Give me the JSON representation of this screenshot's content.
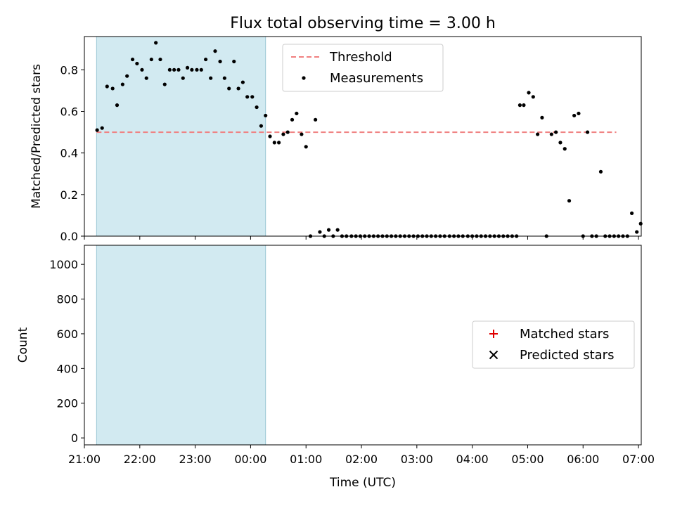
{
  "chart_data": [
    {
      "type": "scatter",
      "title": "Flux total observing time = 3.00 h",
      "xlabel": "",
      "ylabel": "Matched/Predicted stars",
      "xlim": [
        21.0,
        31.05
      ],
      "ylim": [
        0,
        0.96
      ],
      "yticks": [
        0.0,
        0.2,
        0.4,
        0.6,
        0.8
      ],
      "ytick_labels": [
        "0.0",
        "0.2",
        "0.4",
        "0.6",
        "0.8"
      ],
      "shaded_interval": {
        "x": [
          21.22,
          24.27
        ],
        "color": "#add8e6"
      },
      "grid": false,
      "legend_position": "upper-center",
      "series": [
        {
          "name": "Threshold",
          "style": "dashed-line",
          "color": "#f08080",
          "x": [
            21.22,
            30.6
          ],
          "y": [
            0.5,
            0.5
          ]
        },
        {
          "name": "Measurements",
          "style": "dot",
          "color": "#000000",
          "points": [
            [
              21.23,
              0.51
            ],
            [
              21.32,
              0.52
            ],
            [
              21.41,
              0.72
            ],
            [
              21.51,
              0.71
            ],
            [
              21.59,
              0.63
            ],
            [
              21.69,
              0.73
            ],
            [
              21.77,
              0.77
            ],
            [
              21.87,
              0.85
            ],
            [
              21.95,
              0.83
            ],
            [
              22.04,
              0.8
            ],
            [
              22.12,
              0.76
            ],
            [
              22.21,
              0.85
            ],
            [
              22.29,
              0.93
            ],
            [
              22.37,
              0.85
            ],
            [
              22.45,
              0.73
            ],
            [
              22.54,
              0.8
            ],
            [
              22.62,
              0.8
            ],
            [
              22.7,
              0.8
            ],
            [
              22.78,
              0.76
            ],
            [
              22.86,
              0.81
            ],
            [
              22.94,
              0.8
            ],
            [
              23.03,
              0.8
            ],
            [
              23.11,
              0.8
            ],
            [
              23.19,
              0.85
            ],
            [
              23.28,
              0.76
            ],
            [
              23.36,
              0.89
            ],
            [
              23.45,
              0.84
            ],
            [
              23.53,
              0.76
            ],
            [
              23.61,
              0.71
            ],
            [
              23.7,
              0.84
            ],
            [
              23.78,
              0.71
            ],
            [
              23.86,
              0.74
            ],
            [
              23.94,
              0.67
            ],
            [
              24.03,
              0.67
            ],
            [
              24.11,
              0.62
            ],
            [
              24.19,
              0.53
            ],
            [
              24.27,
              0.58
            ],
            [
              24.35,
              0.48
            ],
            [
              24.43,
              0.45
            ],
            [
              24.51,
              0.45
            ],
            [
              24.59,
              0.49
            ],
            [
              24.67,
              0.5
            ],
            [
              24.75,
              0.56
            ],
            [
              24.83,
              0.59
            ],
            [
              24.92,
              0.49
            ],
            [
              25.0,
              0.43
            ],
            [
              25.08,
              0.0
            ],
            [
              25.17,
              0.56
            ],
            [
              25.25,
              0.02
            ],
            [
              25.33,
              0.0
            ],
            [
              25.41,
              0.03
            ],
            [
              25.49,
              0.0
            ],
            [
              25.57,
              0.03
            ],
            [
              25.65,
              0.0
            ],
            [
              25.73,
              0.0
            ],
            [
              25.82,
              0.0
            ],
            [
              25.9,
              0.0
            ],
            [
              25.98,
              0.0
            ],
            [
              26.06,
              0.0
            ],
            [
              26.14,
              0.0
            ],
            [
              26.22,
              0.0
            ],
            [
              26.3,
              0.0
            ],
            [
              26.38,
              0.0
            ],
            [
              26.46,
              0.0
            ],
            [
              26.54,
              0.0
            ],
            [
              26.62,
              0.0
            ],
            [
              26.7,
              0.0
            ],
            [
              26.78,
              0.0
            ],
            [
              26.86,
              0.0
            ],
            [
              26.94,
              0.0
            ],
            [
              27.02,
              0.0
            ],
            [
              27.1,
              0.0
            ],
            [
              27.18,
              0.0
            ],
            [
              27.26,
              0.0
            ],
            [
              27.34,
              0.0
            ],
            [
              27.42,
              0.0
            ],
            [
              27.5,
              0.0
            ],
            [
              27.59,
              0.0
            ],
            [
              27.67,
              0.0
            ],
            [
              27.75,
              0.0
            ],
            [
              27.83,
              0.0
            ],
            [
              27.92,
              0.0
            ],
            [
              28.0,
              0.0
            ],
            [
              28.08,
              0.0
            ],
            [
              28.16,
              0.0
            ],
            [
              28.24,
              0.0
            ],
            [
              28.32,
              0.0
            ],
            [
              28.4,
              0.0
            ],
            [
              28.48,
              0.0
            ],
            [
              28.56,
              0.0
            ],
            [
              28.64,
              0.0
            ],
            [
              28.72,
              0.0
            ],
            [
              28.8,
              0.0
            ],
            [
              28.86,
              0.63
            ],
            [
              28.93,
              0.63
            ],
            [
              29.02,
              0.69
            ],
            [
              29.1,
              0.67
            ],
            [
              29.18,
              0.49
            ],
            [
              29.26,
              0.57
            ],
            [
              29.34,
              0.0
            ],
            [
              29.43,
              0.49
            ],
            [
              29.51,
              0.5
            ],
            [
              29.59,
              0.45
            ],
            [
              29.67,
              0.42
            ],
            [
              29.75,
              0.17
            ],
            [
              29.84,
              0.58
            ],
            [
              29.92,
              0.59
            ],
            [
              30.0,
              0.0
            ],
            [
              30.08,
              0.5
            ],
            [
              30.16,
              0.0
            ],
            [
              30.24,
              0.0
            ],
            [
              30.32,
              0.31
            ],
            [
              30.4,
              0.0
            ],
            [
              30.48,
              0.0
            ],
            [
              30.56,
              0.0
            ],
            [
              30.64,
              0.0
            ],
            [
              30.72,
              0.0
            ],
            [
              30.8,
              0.0
            ],
            [
              30.88,
              0.11
            ],
            [
              30.97,
              0.02
            ],
            [
              31.04,
              0.06
            ]
          ],
          "points_note": ""
        }
      ]
    },
    {
      "type": "scatter",
      "title": "",
      "xlabel": "Time (UTC)",
      "ylabel": "Count",
      "xlim": [
        21.0,
        31.05
      ],
      "ylim": [
        -40,
        1110
      ],
      "yticks": [
        0,
        200,
        400,
        600,
        800,
        1000
      ],
      "ytick_labels": [
        "0",
        "200",
        "400",
        "600",
        "800",
        "1000"
      ],
      "xticks": [
        21,
        22,
        23,
        24,
        25,
        26,
        27,
        28,
        29,
        30,
        31
      ],
      "xtick_labels": [
        "21:00",
        "22:00",
        "23:00",
        "00:00",
        "01:00",
        "02:00",
        "03:00",
        "04:00",
        "05:00",
        "06:00",
        "07:00"
      ],
      "shaded_interval": {
        "x": [
          21.22,
          24.27
        ],
        "color": "#add8e6"
      },
      "grid": false,
      "legend_position": "center-right",
      "series": [
        {
          "name": "Matched stars",
          "marker": "plus",
          "color": "#e00000"
        },
        {
          "name": "Predicted stars",
          "marker": "x",
          "color": "#000000"
        }
      ]
    }
  ]
}
